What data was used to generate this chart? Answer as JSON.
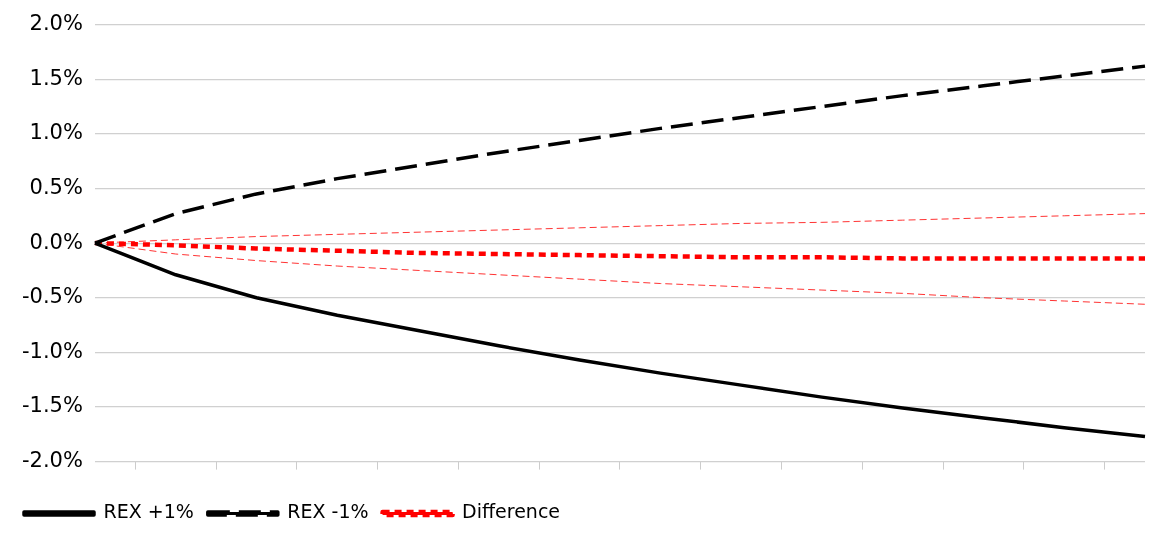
{
  "chart_data": {
    "type": "line",
    "categories": [
      null,
      null,
      null,
      null,
      null,
      null,
      null,
      null,
      null,
      null,
      null,
      null,
      null,
      null
    ],
    "series": [
      {
        "name": "REX +1%",
        "color": "#000000",
        "line_style": "solid",
        "values": [
          0,
          -0.29,
          -0.5,
          -0.66,
          -0.8,
          -0.94,
          -1.07,
          -1.19,
          -1.3,
          -1.41,
          -1.51,
          -1.6,
          -1.69,
          -1.77
        ]
      },
      {
        "name": "REX -1%",
        "color": "#000000",
        "line_style": "dashed",
        "values": [
          0,
          0.27,
          0.45,
          0.59,
          0.71,
          0.83,
          0.94,
          1.05,
          1.15,
          1.25,
          1.35,
          1.44,
          1.53,
          1.62
        ]
      },
      {
        "name": "Difference",
        "color": "#ff0000",
        "line_style": "dotted",
        "values": [
          0,
          -0.02,
          -0.05,
          -0.07,
          -0.09,
          -0.1,
          -0.11,
          -0.12,
          -0.13,
          -0.13,
          -0.14,
          -0.14,
          -0.14,
          -0.14
        ]
      },
      {
        "color": "#ff3333",
        "line_style": "dashed",
        "values": [
          0,
          0.03,
          0.06,
          0.08,
          0.1,
          0.12,
          0.14,
          0.16,
          0.18,
          0.19,
          0.21,
          0.23,
          0.25,
          0.27
        ]
      },
      {
        "color": "#ff3333",
        "line_style": "dashed",
        "values": [
          0,
          -0.1,
          -0.16,
          -0.21,
          -0.25,
          -0.29,
          -0.33,
          -0.37,
          -0.4,
          -0.43,
          -0.46,
          -0.5,
          -0.53,
          -0.56
        ]
      }
    ],
    "ylim": [
      -2.0,
      2.0
    ],
    "yticks": [
      {
        "value": -2.0,
        "label": "-2.0%"
      },
      {
        "value": -1.5,
        "label": "-1.5%"
      },
      {
        "value": -1.0,
        "label": "-1.0%"
      },
      {
        "value": -0.5,
        "label": "-0.5%"
      },
      {
        "value": 0,
        "label": "0.0%"
      },
      {
        "value": 0.5,
        "label": "0.5%"
      },
      {
        "value": 1.0,
        "label": "1.0%"
      },
      {
        "value": 1.5,
        "label": "1.5%"
      },
      {
        "value": 2.0,
        "label": "2.0%"
      }
    ],
    "grid": "y",
    "legend": "bottom left",
    "marker": "none"
  }
}
